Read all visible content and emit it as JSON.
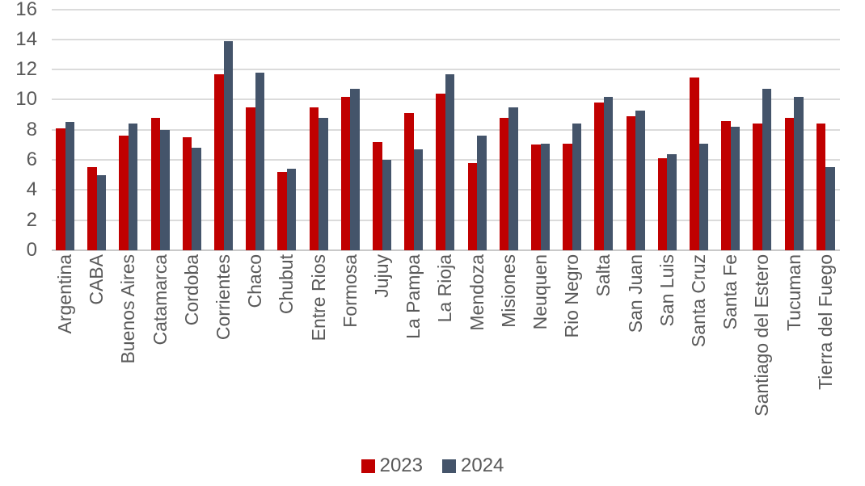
{
  "chart_data": {
    "type": "bar",
    "title": "",
    "categories": [
      "Argentina",
      "CABA",
      "Buenos Aires",
      "Catamarca",
      "Cordoba",
      "Corrientes",
      "Chaco",
      "Chubut",
      "Entre Rios",
      "Formosa",
      "Jujuy",
      "La Pampa",
      "La Rioja",
      "Mendoza",
      "Misiones",
      "Neuquen",
      "Rio Negro",
      "Salta",
      "San Juan",
      "San Luis",
      "Santa Cruz",
      "Santa Fe",
      "Santiago del Estero",
      "Tucuman",
      "Tierra del Fuego"
    ],
    "series": [
      {
        "name": "2023",
        "color": "#C00000",
        "values": [
          8.1,
          5.5,
          7.6,
          8.8,
          7.5,
          11.7,
          9.5,
          5.2,
          9.5,
          10.2,
          7.2,
          9.1,
          10.4,
          5.8,
          8.8,
          7.0,
          7.1,
          9.8,
          8.9,
          6.1,
          11.5,
          8.6,
          8.4,
          8.8,
          8.4
        ]
      },
      {
        "name": "2024",
        "color": "#44546A",
        "values": [
          8.5,
          5.0,
          8.4,
          8.0,
          6.8,
          13.9,
          11.8,
          5.4,
          8.8,
          10.7,
          6.0,
          6.7,
          11.7,
          7.6,
          9.5,
          7.1,
          8.4,
          10.2,
          9.3,
          6.4,
          7.1,
          8.2,
          10.7,
          10.2,
          5.5
        ]
      }
    ],
    "ylim": [
      0,
      16
    ],
    "yticks": [
      0,
      2,
      4,
      6,
      8,
      10,
      12,
      14,
      16
    ],
    "grid": true,
    "legend_position": "bottom",
    "axis_text_color": "#595959",
    "gridline_color": "#DBDBDB",
    "axis_line_color": "#C9C9C9"
  }
}
